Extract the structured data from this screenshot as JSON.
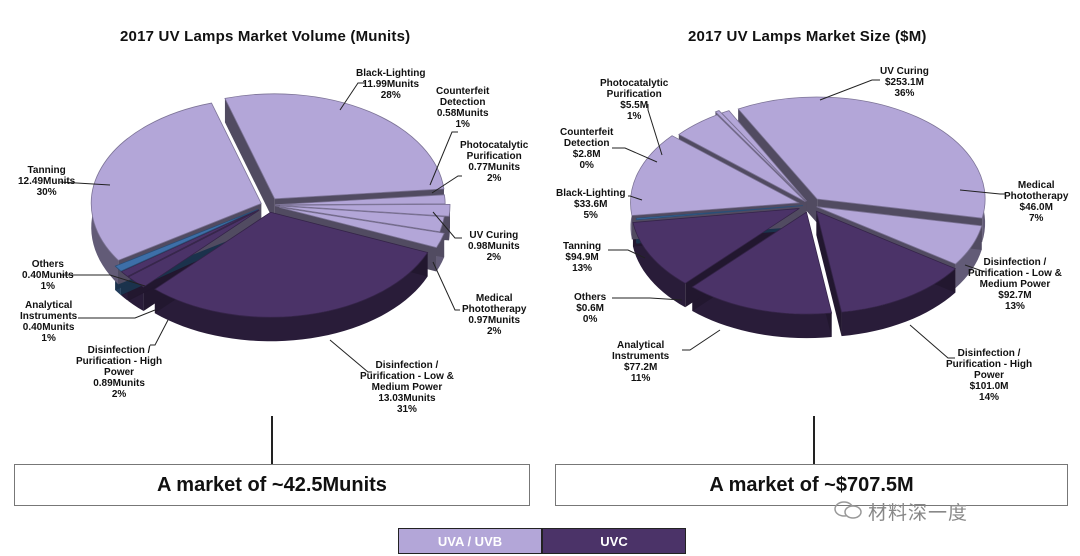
{
  "charts": [
    {
      "title": "2017 UV Lamps Market Volume (Munits)",
      "summary": "A market of ~42.5Munits",
      "labels": [
        {
          "l1": "Black-Lighting",
          "l2": "11.99Munits",
          "l3": "28%"
        },
        {
          "l1": "Counterfeit",
          "l2": "Detection",
          "l3": "0.58Munits",
          "l4": "1%"
        },
        {
          "l1": "Photocatalytic",
          "l2": "Purification",
          "l3": "0.77Munits",
          "l4": "2%"
        },
        {
          "l1": "UV Curing",
          "l2": "0.98Munits",
          "l3": "2%"
        },
        {
          "l1": "Medical",
          "l2": "Phototherapy",
          "l3": "0.97Munits",
          "l4": "2%"
        },
        {
          "l1": "Disinfection /",
          "l2": "Purification - Low &",
          "l3": "Medium Power",
          "l4": "13.03Munits",
          "l5": "31%"
        },
        {
          "l1": "Disinfection /",
          "l2": "Purification - High",
          "l3": "Power",
          "l4": "0.89Munits",
          "l5": "2%"
        },
        {
          "l1": "Analytical",
          "l2": "Instruments",
          "l3": "0.40Munits",
          "l4": "1%"
        },
        {
          "l1": "Others",
          "l2": "0.40Munits",
          "l3": "1%"
        },
        {
          "l1": "Tanning",
          "l2": "12.49Munits",
          "l3": "30%"
        }
      ]
    },
    {
      "title": "2017 UV Lamps Market Size ($M)",
      "summary": "A market of ~$707.5M",
      "labels": [
        {
          "l1": "UV Curing",
          "l2": "$253.1M",
          "l3": "36%"
        },
        {
          "l1": "Medical",
          "l2": "Phototherapy",
          "l3": "$46.0M",
          "l4": "7%"
        },
        {
          "l1": "Disinfection /",
          "l2": "Purification - Low &",
          "l3": "Medium Power",
          "l4": "$92.7M",
          "l5": "13%"
        },
        {
          "l1": "Disinfection /",
          "l2": "Purification - High",
          "l3": "Power",
          "l4": "$101.0M",
          "l5": "14%"
        },
        {
          "l1": "Analytical",
          "l2": "Instruments",
          "l3": "$77.2M",
          "l4": "11%"
        },
        {
          "l1": "Others",
          "l2": "$0.6M",
          "l3": "0%"
        },
        {
          "l1": "Tanning",
          "l2": "$94.9M",
          "l3": "13%"
        },
        {
          "l1": "Black-Lighting",
          "l2": "$33.6M",
          "l3": "5%"
        },
        {
          "l1": "Counterfeit",
          "l2": "Detection",
          "l3": "$2.8M",
          "l4": "0%"
        },
        {
          "l1": "Photocatalytic",
          "l2": "Purification",
          "l3": "$5.5M",
          "l4": "1%"
        }
      ]
    }
  ],
  "legend": {
    "uva": "UVA / UVB",
    "uvc": "UVC"
  },
  "watermark": "材料深一度",
  "colors": {
    "uva": "#b3a6d8",
    "uvc": "#4b3368",
    "others": "#3d6fa8"
  },
  "chart_data": [
    {
      "type": "pie",
      "title": "2017 UV Lamps Market Volume (Munits)",
      "slices": [
        {
          "label": "Black-Lighting",
          "value": 11.99,
          "pct": 28,
          "group": "uva"
        },
        {
          "label": "Counterfeit Detection",
          "value": 0.58,
          "pct": 1,
          "group": "uva"
        },
        {
          "label": "Photocatalytic Purification",
          "value": 0.77,
          "pct": 2,
          "group": "uva"
        },
        {
          "label": "UV Curing",
          "value": 0.98,
          "pct": 2,
          "group": "uva"
        },
        {
          "label": "Medical Phototherapy",
          "value": 0.97,
          "pct": 2,
          "group": "uva"
        },
        {
          "label": "Disinfection / Purification - Low & Medium Power",
          "value": 13.03,
          "pct": 31,
          "group": "uvc"
        },
        {
          "label": "Disinfection / Purification - High Power",
          "value": 0.89,
          "pct": 2,
          "group": "uvc"
        },
        {
          "label": "Analytical Instruments",
          "value": 0.4,
          "pct": 1,
          "group": "uvc"
        },
        {
          "label": "Others",
          "value": 0.4,
          "pct": 1,
          "group": "others"
        },
        {
          "label": "Tanning",
          "value": 12.49,
          "pct": 30,
          "group": "uva"
        }
      ],
      "total": "~42.5Munits"
    },
    {
      "type": "pie",
      "title": "2017 UV Lamps Market Size ($M)",
      "slices": [
        {
          "label": "UV Curing",
          "value": 253.1,
          "pct": 36,
          "group": "uva"
        },
        {
          "label": "Medical Phototherapy",
          "value": 46.0,
          "pct": 7,
          "group": "uva"
        },
        {
          "label": "Disinfection / Purification - Low & Medium Power",
          "value": 92.7,
          "pct": 13,
          "group": "uvc"
        },
        {
          "label": "Disinfection / Purification - High Power",
          "value": 101.0,
          "pct": 14,
          "group": "uvc"
        },
        {
          "label": "Analytical Instruments",
          "value": 77.2,
          "pct": 11,
          "group": "uvc"
        },
        {
          "label": "Others",
          "value": 0.6,
          "pct": 0,
          "group": "others"
        },
        {
          "label": "Tanning",
          "value": 94.9,
          "pct": 13,
          "group": "uva"
        },
        {
          "label": "Black-Lighting",
          "value": 33.6,
          "pct": 5,
          "group": "uva"
        },
        {
          "label": "Counterfeit Detection",
          "value": 2.8,
          "pct": 0,
          "group": "uva"
        },
        {
          "label": "Photocatalytic Purification",
          "value": 5.5,
          "pct": 1,
          "group": "uva"
        }
      ],
      "total": "~$707.5M"
    }
  ]
}
